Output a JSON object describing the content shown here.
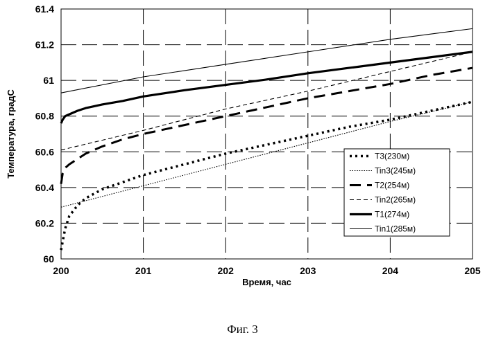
{
  "caption": "Фиг. 3",
  "chart_data": {
    "type": "line",
    "xlabel": "Время, час",
    "ylabel": "Температура, градС",
    "xlim": [
      200,
      205
    ],
    "ylim": [
      60,
      61.4
    ],
    "xticks": [
      200,
      201,
      202,
      203,
      204,
      205
    ],
    "xtick_labels": [
      "200",
      "201",
      "202",
      "203",
      "204",
      "205"
    ],
    "yticks": [
      60,
      60.2,
      60.4,
      60.6,
      60.8,
      61,
      61.2,
      61.4
    ],
    "ytick_labels": [
      "60",
      "60.2",
      "60.4",
      "60.6",
      "60.8",
      "61",
      "61.2",
      "61.4"
    ],
    "grid": "dashed",
    "legend_position": "lower-right",
    "series": [
      {
        "name": "T3(230м)",
        "style": "dotted-thick",
        "color": "#000000",
        "x": [
          200,
          200.05,
          200.1,
          200.2,
          200.3,
          200.5,
          200.75,
          201,
          201.5,
          202,
          202.5,
          203,
          203.5,
          204,
          204.5,
          205
        ],
        "y": [
          60.05,
          60.17,
          60.24,
          60.3,
          60.34,
          60.39,
          60.43,
          60.47,
          60.53,
          60.59,
          60.64,
          60.69,
          60.74,
          60.78,
          60.83,
          60.88
        ]
      },
      {
        "name": "Tin3(245м)",
        "style": "dotted-thin",
        "color": "#000000",
        "x": [
          200,
          201,
          202,
          203,
          204,
          205
        ],
        "y": [
          60.29,
          60.41,
          60.53,
          60.65,
          60.77,
          60.88
        ]
      },
      {
        "name": "T2(254м)",
        "style": "long-dash",
        "color": "#000000",
        "x": [
          200,
          200.02,
          200.05,
          200.1,
          200.2,
          200.3,
          200.5,
          200.75,
          201,
          201.5,
          202,
          202.5,
          203,
          203.5,
          204,
          204.5,
          205
        ],
        "y": [
          60.42,
          60.48,
          60.51,
          60.53,
          60.56,
          60.59,
          60.63,
          60.67,
          60.7,
          60.75,
          60.8,
          60.85,
          60.9,
          60.94,
          60.98,
          61.03,
          61.07
        ]
      },
      {
        "name": "Tin2(265м)",
        "style": "short-dash",
        "color": "#000000",
        "x": [
          200,
          201,
          202,
          203,
          204,
          205
        ],
        "y": [
          60.61,
          60.72,
          60.84,
          60.94,
          61.05,
          61.16
        ]
      },
      {
        "name": "T1(274м)",
        "style": "solid-thick",
        "color": "#000000",
        "x": [
          200,
          200.02,
          200.05,
          200.1,
          200.2,
          200.3,
          200.5,
          200.75,
          201,
          201.5,
          202,
          202.5,
          203,
          203.5,
          204,
          204.5,
          205
        ],
        "y": [
          60.76,
          60.78,
          60.8,
          60.81,
          60.83,
          60.845,
          60.865,
          60.885,
          60.91,
          60.945,
          60.975,
          61.005,
          61.04,
          61.07,
          61.1,
          61.13,
          61.16
        ]
      },
      {
        "name": "Tin1(285м)",
        "style": "solid-thin",
        "color": "#000000",
        "x": [
          200,
          201,
          202,
          203,
          204,
          205
        ],
        "y": [
          60.93,
          61.02,
          61.09,
          61.16,
          61.23,
          61.29
        ]
      }
    ]
  }
}
